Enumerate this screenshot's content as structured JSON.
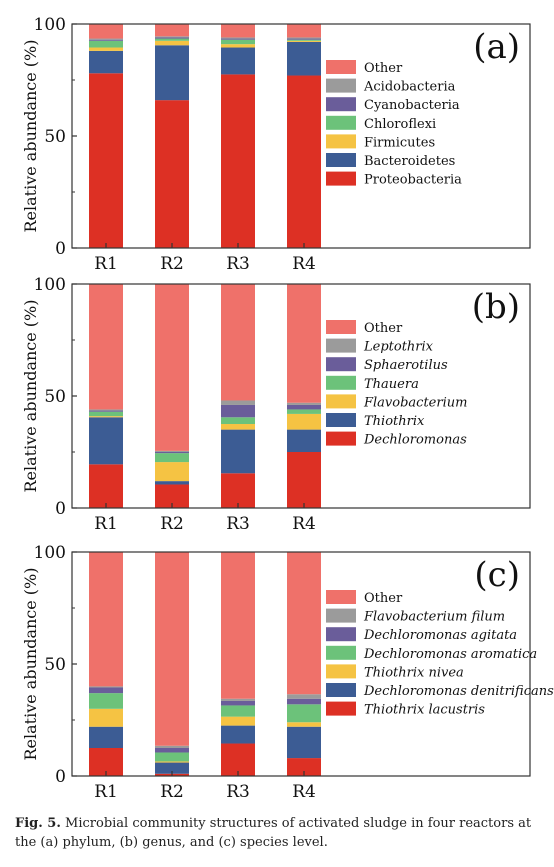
{
  "chart_data": [
    {
      "type": "bar",
      "panel_label": "(a)",
      "ylabel": "Relative abundance (%)",
      "ylim": [
        0,
        100
      ],
      "yticks": [
        "0",
        "50",
        "100"
      ],
      "categories": [
        "R1",
        "R2",
        "R3",
        "R4"
      ],
      "legend_italic": false,
      "series": [
        {
          "name": "Proteobacteria",
          "color": "#dd3024",
          "values": [
            78,
            66,
            77.5,
            77
          ]
        },
        {
          "name": "Bacteroidetes",
          "color": "#3c5c94",
          "values": [
            10,
            24.5,
            12,
            15
          ]
        },
        {
          "name": "Firmicutes",
          "color": "#f5c343",
          "values": [
            1.5,
            2,
            1.5,
            0.5
          ]
        },
        {
          "name": "Chloroflexi",
          "color": "#6cc27a",
          "values": [
            3,
            1,
            2,
            0.5
          ]
        },
        {
          "name": "Cyanobacteria",
          "color": "#6a5d9a",
          "values": [
            0.5,
            0.5,
            0.5,
            0.5
          ]
        },
        {
          "name": "Acidobacteria",
          "color": "#9b9b9b",
          "values": [
            0.5,
            0.5,
            0.5,
            0.5
          ]
        },
        {
          "name": "Other",
          "color": "#ef716a",
          "values": [
            6.5,
            5.5,
            6,
            6
          ]
        }
      ]
    },
    {
      "type": "bar",
      "panel_label": "(b)",
      "ylabel": "Relative abundance (%)",
      "ylim": [
        0,
        100
      ],
      "yticks": [
        "0",
        "50",
        "100"
      ],
      "categories": [
        "R1",
        "R2",
        "R3",
        "R4"
      ],
      "legend_italic": true,
      "series": [
        {
          "name": "Dechloromonas",
          "color": "#dd3024",
          "values": [
            19.5,
            10.5,
            15.5,
            25
          ]
        },
        {
          "name": "Thiothrix",
          "color": "#3c5c94",
          "values": [
            21,
            1.5,
            19.5,
            10
          ]
        },
        {
          "name": "Flavobacterium",
          "color": "#f5c343",
          "values": [
            0.5,
            8.5,
            2.5,
            7
          ]
        },
        {
          "name": "Thauera",
          "color": "#6cc27a",
          "values": [
            2,
            4,
            3,
            2
          ]
        },
        {
          "name": "Sphaerotilus",
          "color": "#6a5d9a",
          "values": [
            0.5,
            0.5,
            5.5,
            2
          ]
        },
        {
          "name": "Leptothrix",
          "color": "#9b9b9b",
          "values": [
            0.5,
            0.5,
            2,
            1
          ]
        },
        {
          "name": "Other",
          "color": "#ef716a",
          "values": [
            56,
            74.5,
            52,
            53
          ]
        }
      ]
    },
    {
      "type": "bar",
      "panel_label": "(c)",
      "ylabel": "Relative abundance (%)",
      "ylim": [
        0,
        100
      ],
      "yticks": [
        "0",
        "50",
        "100"
      ],
      "categories": [
        "R1",
        "R2",
        "R3",
        "R4"
      ],
      "legend_italic": true,
      "series": [
        {
          "name": "Thiothrix lacustris",
          "color": "#dd3024",
          "values": [
            12.5,
            1,
            14.5,
            8
          ]
        },
        {
          "name": "Dechloromonas denitrificans",
          "color": "#3c5c94",
          "values": [
            9.5,
            5,
            8,
            14
          ]
        },
        {
          "name": "Thiothrix nivea",
          "color": "#f5c343",
          "values": [
            8,
            0.5,
            4,
            2
          ]
        },
        {
          "name": "Dechloromonas aromatica",
          "color": "#6cc27a",
          "values": [
            7,
            4,
            5,
            8
          ]
        },
        {
          "name": "Dechloromonas agitata",
          "color": "#6a5d9a",
          "values": [
            2.5,
            2,
            2,
            2.5
          ]
        },
        {
          "name": "Flavobacterium filum",
          "color": "#9b9b9b",
          "values": [
            0.5,
            1,
            1,
            2
          ]
        },
        {
          "name": "Other",
          "color": "#ef716a",
          "values": [
            60,
            86.5,
            65.5,
            63.5
          ]
        }
      ]
    }
  ],
  "caption": {
    "label": "Fig. 5.",
    "text": " Microbial community structures of activated sludge in four reactors at the (a) phylum, (b) genus, and (c) species level."
  }
}
